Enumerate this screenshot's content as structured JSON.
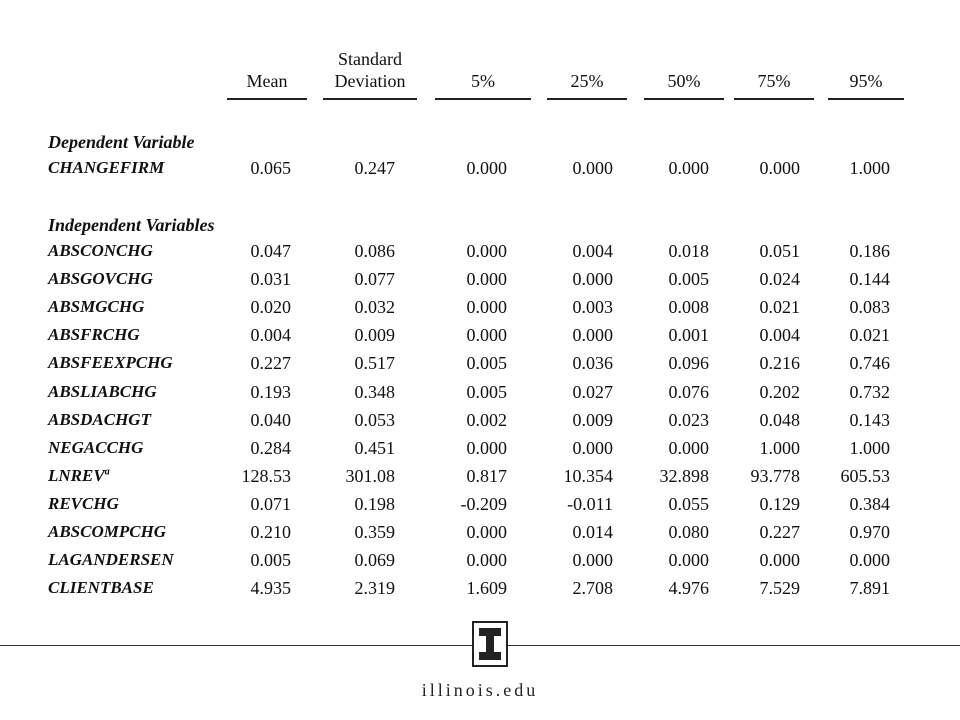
{
  "table": {
    "columns": [
      {
        "key": "mean",
        "label_lines": [
          "Mean"
        ]
      },
      {
        "key": "sd",
        "label_lines": [
          "Standard",
          "Deviation"
        ]
      },
      {
        "key": "p5",
        "label_lines": [
          "5%"
        ]
      },
      {
        "key": "p25",
        "label_lines": [
          "25%"
        ]
      },
      {
        "key": "p50",
        "label_lines": [
          "50%"
        ]
      },
      {
        "key": "p75",
        "label_lines": [
          "75%"
        ]
      },
      {
        "key": "p95",
        "label_lines": [
          "95%"
        ]
      }
    ],
    "sections": [
      {
        "title": "Dependent Variable",
        "rows": [
          {
            "label": "CHANGEFIRM",
            "sup": "",
            "values": [
              "0.065",
              "0.247",
              "0.000",
              "0.000",
              "0.000",
              "0.000",
              "1.000"
            ]
          }
        ]
      },
      {
        "title": "Independent Variables",
        "rows": [
          {
            "label": "ABSCONCHG",
            "sup": "",
            "values": [
              "0.047",
              "0.086",
              "0.000",
              "0.004",
              "0.018",
              "0.051",
              "0.186"
            ]
          },
          {
            "label": "ABSGOVCHG",
            "sup": "",
            "values": [
              "0.031",
              "0.077",
              "0.000",
              "0.000",
              "0.005",
              "0.024",
              "0.144"
            ]
          },
          {
            "label": "ABSMGCHG",
            "sup": "",
            "values": [
              "0.020",
              "0.032",
              "0.000",
              "0.003",
              "0.008",
              "0.021",
              "0.083"
            ]
          },
          {
            "label": "ABSFRCHG",
            "sup": "",
            "values": [
              "0.004",
              "0.009",
              "0.000",
              "0.000",
              "0.001",
              "0.004",
              "0.021"
            ]
          },
          {
            "label": "ABSFEEXPCHG",
            "sup": "",
            "values": [
              "0.227",
              "0.517",
              "0.005",
              "0.036",
              "0.096",
              "0.216",
              "0.746"
            ]
          },
          {
            "label": "ABSLIABCHG",
            "sup": "",
            "values": [
              "0.193",
              "0.348",
              "0.005",
              "0.027",
              "0.076",
              "0.202",
              "0.732"
            ]
          },
          {
            "label": "ABSDACHGT",
            "sup": "",
            "values": [
              "0.040",
              "0.053",
              "0.002",
              "0.009",
              "0.023",
              "0.048",
              "0.143"
            ]
          },
          {
            "label": "NEGACCHG",
            "sup": "",
            "values": [
              "0.284",
              "0.451",
              "0.000",
              "0.000",
              "0.000",
              "1.000",
              "1.000"
            ]
          },
          {
            "label": "LNREV",
            "sup": "a",
            "values": [
              "128.53",
              "301.08",
              "0.817",
              "10.354",
              "32.898",
              "93.778",
              "605.53"
            ]
          },
          {
            "label": "REVCHG",
            "sup": "",
            "values": [
              "0.071",
              "0.198",
              "-0.209",
              "-0.011",
              "0.055",
              "0.129",
              "0.384"
            ]
          },
          {
            "label": "ABSCOMPCHG",
            "sup": "",
            "values": [
              "0.210",
              "0.359",
              "0.000",
              "0.014",
              "0.080",
              "0.227",
              "0.970"
            ]
          },
          {
            "label": "LAGANDERSEN",
            "sup": "",
            "values": [
              "0.005",
              "0.069",
              "0.000",
              "0.000",
              "0.000",
              "0.000",
              "0.000"
            ]
          },
          {
            "label": "CLIENTBASE",
            "sup": "",
            "values": [
              "4.935",
              "2.319",
              "1.609",
              "2.708",
              "4.976",
              "7.529",
              "7.891"
            ]
          }
        ]
      }
    ]
  },
  "footer": {
    "logo_icon": "illinois-block-i-logo",
    "site": "illinois.edu"
  }
}
